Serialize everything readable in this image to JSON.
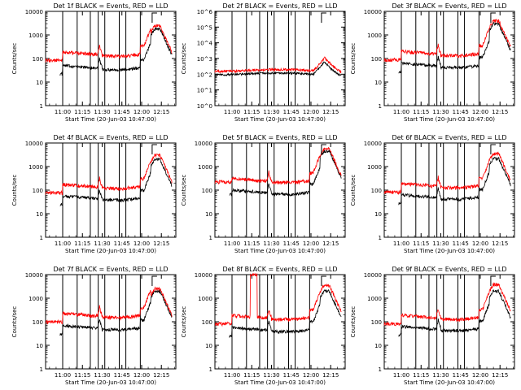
{
  "chart_data": [
    {
      "id": "det1f",
      "type": "line",
      "title": "Det 1f BLACK = Events, RED = LLD",
      "xlabel": "Start Time (20-Jun-03 10:47:00)",
      "ylabel": "Counts/sec",
      "yscale": "log",
      "ylim": [
        1,
        10000
      ],
      "ytick_labels": [
        "1",
        "10",
        "100",
        "1000",
        "10000"
      ],
      "xtick_labels": [
        "11:00",
        "11:15",
        "11:30",
        "11:45",
        "12:00",
        "12:15"
      ],
      "xlim": [
        "10:47",
        "12:26"
      ],
      "vlines": [
        "11:00",
        "11:11",
        "11:21",
        "11:27",
        "11:32",
        "11:43",
        "11:48",
        "11:59"
      ],
      "series": [
        {
          "name": "Events",
          "color": "#000000",
          "profile": "A",
          "level": 40,
          "peak": 1800
        },
        {
          "name": "LLD",
          "color": "#ff0000",
          "profile": "A",
          "level": 150,
          "peak": 2500
        }
      ]
    },
    {
      "id": "det2f",
      "type": "line",
      "title": "Det 2f BLACK = Events, RED = LLD",
      "xlabel": "Start Time (20-Jun-03 10:47:00)",
      "ylabel": "Counts/sec",
      "yscale": "log",
      "ylim": [
        1,
        1000000
      ],
      "ytick_labels": [
        "10^0",
        "10^1",
        "10^2",
        "10^3",
        "10^4",
        "10^5",
        "10^6"
      ],
      "xtick_labels": [
        "11:00",
        "11:15",
        "11:30",
        "11:45",
        "12:00",
        "12:15"
      ],
      "xlim": [
        "10:47",
        "12:26"
      ],
      "vlines": [
        "11:00",
        "11:11",
        "11:21",
        "11:27",
        "11:32",
        "11:43",
        "11:48",
        "11:59"
      ],
      "series": [
        {
          "name": "Events",
          "color": "#000000",
          "profile": "C",
          "level": 150,
          "peak": 600
        },
        {
          "name": "LLD",
          "color": "#ff0000",
          "profile": "C",
          "level": 250,
          "peak": 1200
        }
      ]
    },
    {
      "id": "det3f",
      "type": "line",
      "title": "Det 3f BLACK = Events, RED = LLD",
      "xlabel": "Start Time (20-Jun-03 10:47:00)",
      "ylabel": "Counts/sec",
      "yscale": "log",
      "ylim": [
        1,
        10000
      ],
      "ytick_labels": [
        "1",
        "10",
        "100",
        "1000",
        "10000"
      ],
      "xtick_labels": [
        "11:00",
        "11:15",
        "11:30",
        "11:45",
        "12:00",
        "12:15"
      ],
      "xlim": [
        "10:47",
        "12:26"
      ],
      "vlines": [
        "11:00",
        "11:11",
        "11:21",
        "11:27",
        "11:32",
        "11:43",
        "11:48",
        "11:59"
      ],
      "series": [
        {
          "name": "Events",
          "color": "#000000",
          "profile": "A",
          "level": 50,
          "peak": 3000
        },
        {
          "name": "LLD",
          "color": "#ff0000",
          "profile": "A",
          "level": 160,
          "peak": 4000
        }
      ]
    },
    {
      "id": "det4f",
      "type": "line",
      "title": "Det 4f BLACK = Events, RED = LLD",
      "xlabel": "Start Time (20-Jun-03 10:47:00)",
      "ylabel": "Counts/sec",
      "yscale": "log",
      "ylim": [
        1,
        10000
      ],
      "ytick_labels": [
        "1",
        "10",
        "100",
        "1000",
        "10000"
      ],
      "xtick_labels": [
        "11:00",
        "11:15",
        "11:30",
        "11:45",
        "12:00",
        "12:15"
      ],
      "xlim": [
        "10:47",
        "12:26"
      ],
      "vlines": [
        "11:00",
        "11:11",
        "11:21",
        "11:27",
        "11:32",
        "11:43",
        "11:48",
        "11:59"
      ],
      "series": [
        {
          "name": "Events",
          "color": "#000000",
          "profile": "A",
          "level": 45,
          "peak": 2000
        },
        {
          "name": "LLD",
          "color": "#ff0000",
          "profile": "A",
          "level": 140,
          "peak": 3000
        }
      ]
    },
    {
      "id": "det5f",
      "type": "line",
      "title": "Det 5f BLACK = Events, RED = LLD",
      "xlabel": "Start Time (20-Jun-03 10:47:00)",
      "ylabel": "Counts/sec",
      "yscale": "log",
      "ylim": [
        1,
        10000
      ],
      "ytick_labels": [
        "1",
        "10",
        "100",
        "1000",
        "10000"
      ],
      "xtick_labels": [
        "11:00",
        "11:15",
        "11:30",
        "11:45",
        "12:00",
        "12:15"
      ],
      "xlim": [
        "10:47",
        "12:26"
      ],
      "vlines": [
        "11:00",
        "11:11",
        "11:21",
        "11:27",
        "11:32",
        "11:43",
        "11:48",
        "11:59"
      ],
      "series": [
        {
          "name": "Events",
          "color": "#000000",
          "profile": "B",
          "level": 80,
          "peak": 4500
        },
        {
          "name": "LLD",
          "color": "#ff0000",
          "profile": "B",
          "level": 250,
          "peak": 5500
        }
      ]
    },
    {
      "id": "det6f",
      "type": "line",
      "title": "Det 6f BLACK = Events, RED = LLD",
      "xlabel": "Start Time (20-Jun-03 10:47:00)",
      "ylabel": "Counts/sec",
      "yscale": "log",
      "ylim": [
        1,
        10000
      ],
      "ytick_labels": [
        "1",
        "10",
        "100",
        "1000",
        "10000"
      ],
      "xtick_labels": [
        "11:00",
        "11:15",
        "11:30",
        "11:45",
        "12:00",
        "12:15"
      ],
      "xlim": [
        "10:47",
        "12:26"
      ],
      "vlines": [
        "11:00",
        "11:11",
        "11:21",
        "11:27",
        "11:32",
        "11:43",
        "11:48",
        "11:59"
      ],
      "series": [
        {
          "name": "Events",
          "color": "#000000",
          "profile": "A",
          "level": 50,
          "peak": 2200
        },
        {
          "name": "LLD",
          "color": "#ff0000",
          "profile": "A",
          "level": 150,
          "peak": 3500
        }
      ]
    },
    {
      "id": "det7f",
      "type": "line",
      "title": "Det 7f BLACK = Events, RED = LLD",
      "xlabel": "Start Time (20-Jun-03 10:47:00)",
      "ylabel": "Counts/sec",
      "yscale": "log",
      "ylim": [
        1,
        10000
      ],
      "ytick_labels": [
        "1",
        "10",
        "100",
        "1000",
        "10000"
      ],
      "xtick_labels": [
        "11:00",
        "11:15",
        "11:30",
        "11:45",
        "12:00",
        "12:15"
      ],
      "xlim": [
        "10:47",
        "12:26"
      ],
      "vlines": [
        "11:00",
        "11:11",
        "11:21",
        "11:27",
        "11:32",
        "11:43",
        "11:48",
        "11:59"
      ],
      "series": [
        {
          "name": "Events",
          "color": "#000000",
          "profile": "A",
          "level": 55,
          "peak": 2000
        },
        {
          "name": "LLD",
          "color": "#ff0000",
          "profile": "A",
          "level": 180,
          "peak": 2500
        }
      ]
    },
    {
      "id": "det8f",
      "type": "line",
      "title": "Det 8f BLACK = Events, RED = LLD",
      "xlabel": "Start Time (20-Jun-03 10:47:00)",
      "ylabel": "Counts/sec",
      "yscale": "log",
      "ylim": [
        1,
        10000
      ],
      "ytick_labels": [
        "1",
        "10",
        "100",
        "1000",
        "10000"
      ],
      "xtick_labels": [
        "11:00",
        "11:15",
        "11:30",
        "11:45",
        "12:00",
        "12:15"
      ],
      "xlim": [
        "10:47",
        "12:26"
      ],
      "vlines": [
        "11:00",
        "11:11",
        "11:21",
        "11:27",
        "11:32",
        "11:43",
        "11:48",
        "11:59"
      ],
      "spike": {
        "start": "11:14",
        "end": "11:19",
        "value": 10000
      },
      "series": [
        {
          "name": "Events",
          "color": "#000000",
          "profile": "A",
          "level": 45,
          "peak": 2000
        },
        {
          "name": "LLD",
          "color": "#ff0000",
          "profile": "A",
          "level": 150,
          "peak": 3500
        }
      ]
    },
    {
      "id": "det9f",
      "type": "line",
      "title": "Det 9f BLACK = Events, RED = LLD",
      "xlabel": "Start Time (20-Jun-03 10:47:00)",
      "ylabel": "Counts/sec",
      "yscale": "log",
      "ylim": [
        1,
        10000
      ],
      "ytick_labels": [
        "1",
        "10",
        "100",
        "1000",
        "10000"
      ],
      "xtick_labels": [
        "11:00",
        "11:15",
        "11:30",
        "11:45",
        "12:00",
        "12:15"
      ],
      "xlim": [
        "10:47",
        "12:26"
      ],
      "vlines": [
        "11:00",
        "11:11",
        "11:21",
        "11:27",
        "11:32",
        "11:43",
        "11:48",
        "11:59"
      ],
      "series": [
        {
          "name": "Events",
          "color": "#000000",
          "profile": "A",
          "level": 50,
          "peak": 2000
        },
        {
          "name": "LLD",
          "color": "#ff0000",
          "profile": "A",
          "level": 150,
          "peak": 3800
        }
      ]
    }
  ]
}
